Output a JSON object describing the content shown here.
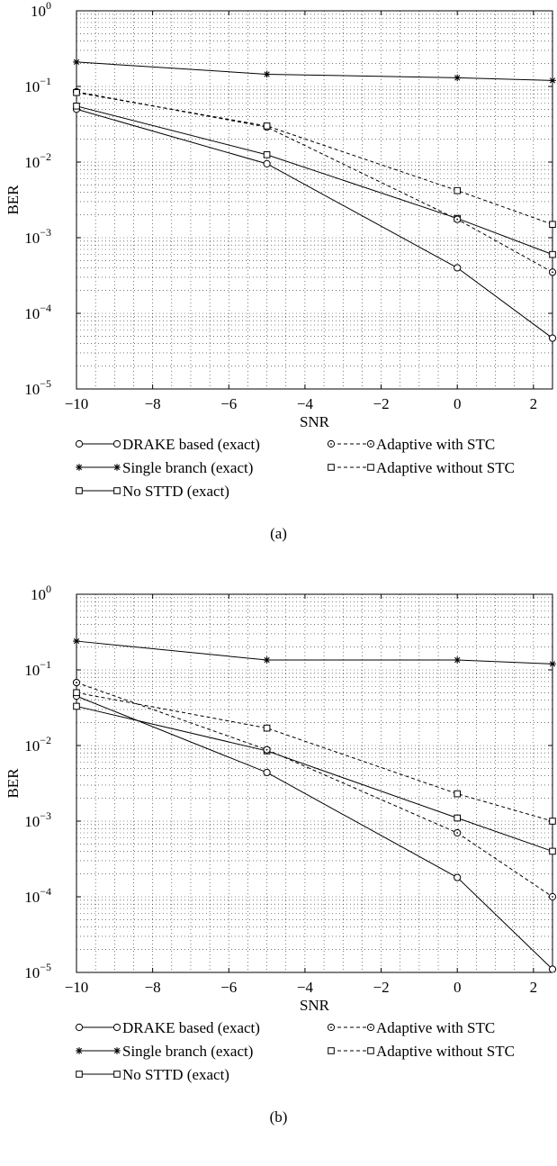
{
  "chart_data": [
    {
      "type": "line",
      "caption": "(a)",
      "xlabel": "SNR",
      "ylabel": "BER",
      "xlim": [
        -10,
        2.5
      ],
      "ylim": [
        1e-05,
        1
      ],
      "yscale": "log",
      "grid": true,
      "legend_position": "bottom",
      "x_ticks": [
        "−10",
        "−8",
        "−6",
        "−4",
        "−2",
        "0",
        "2"
      ],
      "x_tick_values": [
        -10,
        -8,
        -6,
        -4,
        -2,
        0,
        2
      ],
      "y_ticks": [
        {
          "base": "10",
          "exp": "−5",
          "value": 1e-05
        },
        {
          "base": "10",
          "exp": "−4",
          "value": 0.0001
        },
        {
          "base": "10",
          "exp": "−3",
          "value": 0.001
        },
        {
          "base": "10",
          "exp": "−2",
          "value": 0.01
        },
        {
          "base": "10",
          "exp": "−1",
          "value": 0.1
        },
        {
          "base": "10",
          "exp": "0",
          "value": 1
        }
      ],
      "x": [
        -10,
        -5,
        0,
        2.5
      ],
      "series": [
        {
          "name": "DRAKE based (exact)",
          "values": [
            0.05,
            0.0095,
            0.0004,
            4.7e-05
          ],
          "line": "solid",
          "marker": "circle"
        },
        {
          "name": "Single branch (exact)",
          "values": [
            0.21,
            0.145,
            0.13,
            0.12
          ],
          "line": "solid",
          "marker": "star"
        },
        {
          "name": "No STTD (exact)",
          "values": [
            0.055,
            0.0125,
            0.0018,
            0.0006
          ],
          "line": "solid",
          "marker": "square"
        },
        {
          "name": "Adaptive with STC",
          "values": [
            0.085,
            0.029,
            0.00175,
            0.00035
          ],
          "line": "dashed",
          "marker": "circle-dot"
        },
        {
          "name": "Adaptive without STC",
          "values": [
            0.083,
            0.03,
            0.0042,
            0.0015
          ],
          "line": "dashed",
          "marker": "square"
        }
      ]
    },
    {
      "type": "line",
      "caption": "(b)",
      "xlabel": "SNR",
      "ylabel": "BER",
      "xlim": [
        -10,
        2.5
      ],
      "ylim": [
        1e-05,
        1
      ],
      "yscale": "log",
      "grid": true,
      "legend_position": "bottom",
      "x_ticks": [
        "−10",
        "−8",
        "−6",
        "−4",
        "−2",
        "0",
        "2"
      ],
      "x_tick_values": [
        -10,
        -8,
        -6,
        -4,
        -2,
        0,
        2
      ],
      "y_ticks": [
        {
          "base": "10",
          "exp": "−5",
          "value": 1e-05
        },
        {
          "base": "10",
          "exp": "−4",
          "value": 0.0001
        },
        {
          "base": "10",
          "exp": "−3",
          "value": 0.001
        },
        {
          "base": "10",
          "exp": "−2",
          "value": 0.01
        },
        {
          "base": "10",
          "exp": "−1",
          "value": 0.1
        },
        {
          "base": "10",
          "exp": "0",
          "value": 1
        }
      ],
      "x": [
        -10,
        -5,
        0,
        2.5
      ],
      "series": [
        {
          "name": "DRAKE based (exact)",
          "values": [
            0.045,
            0.0044,
            0.00018,
            1.1e-05
          ],
          "line": "solid",
          "marker": "circle"
        },
        {
          "name": "Single branch (exact)",
          "values": [
            0.24,
            0.135,
            0.135,
            0.12
          ],
          "line": "solid",
          "marker": "star"
        },
        {
          "name": "No STTD (exact)",
          "values": [
            0.033,
            0.0085,
            0.0011,
            0.0004
          ],
          "line": "solid",
          "marker": "square"
        },
        {
          "name": "Adaptive with STC",
          "values": [
            0.068,
            0.0088,
            0.0007,
            0.0001
          ],
          "line": "dashed",
          "marker": "circle-dot"
        },
        {
          "name": "Adaptive without STC",
          "values": [
            0.05,
            0.017,
            0.0023,
            0.001
          ],
          "line": "dashed",
          "marker": "square"
        }
      ]
    }
  ]
}
